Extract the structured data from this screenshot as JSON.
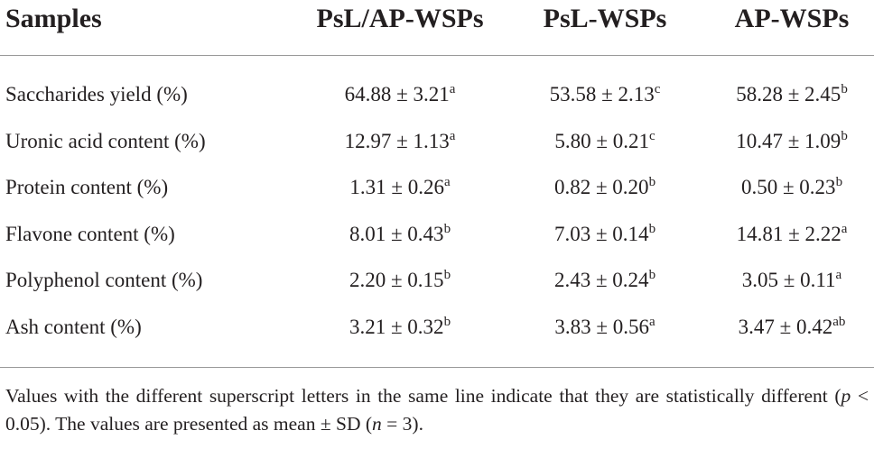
{
  "table": {
    "header": [
      "Samples",
      "PsL/AP-WSPs",
      "PsL-WSPs",
      "AP-WSPs"
    ],
    "rows": [
      {
        "label": "Saccharides yield (%)",
        "cells": [
          {
            "text": "64.88 ± 3.21",
            "sup": "a"
          },
          {
            "text": "53.58 ± 2.13",
            "sup": "c"
          },
          {
            "text": "58.28 ± 2.45",
            "sup": "b"
          }
        ]
      },
      {
        "label": "Uronic acid content (%)",
        "cells": [
          {
            "text": "12.97 ± 1.13",
            "sup": "a"
          },
          {
            "text": "5.80 ± 0.21",
            "sup": "c"
          },
          {
            "text": "10.47 ± 1.09",
            "sup": "b"
          }
        ]
      },
      {
        "label": "Protein content (%)",
        "cells": [
          {
            "text": "1.31 ± 0.26",
            "sup": "a"
          },
          {
            "text": "0.82 ± 0.20",
            "sup": "b"
          },
          {
            "text": "0.50 ± 0.23",
            "sup": "b"
          }
        ]
      },
      {
        "label": "Flavone content (%)",
        "cells": [
          {
            "text": "8.01 ± 0.43",
            "sup": "b"
          },
          {
            "text": "7.03 ± 0.14",
            "sup": "b"
          },
          {
            "text": "14.81 ± 2.22",
            "sup": "a"
          }
        ]
      },
      {
        "label": "Polyphenol content (%)",
        "cells": [
          {
            "text": "2.20 ± 0.15",
            "sup": "b"
          },
          {
            "text": "2.43 ± 0.24",
            "sup": "b"
          },
          {
            "text": "3.05 ± 0.11",
            "sup": "a"
          }
        ]
      },
      {
        "label": "Ash content (%)",
        "cells": [
          {
            "text": "3.21 ± 0.32",
            "sup": "b"
          },
          {
            "text": "3.83 ± 0.56",
            "sup": "a"
          },
          {
            "text": "3.47 ± 0.42",
            "sup": "ab"
          }
        ]
      }
    ]
  },
  "footnote": [
    "Values with the different superscript letters in the same line indicate that they are statistically different (",
    "p",
    " < 0.05). The values are presented as mean ± SD (",
    "n",
    " = 3)."
  ]
}
